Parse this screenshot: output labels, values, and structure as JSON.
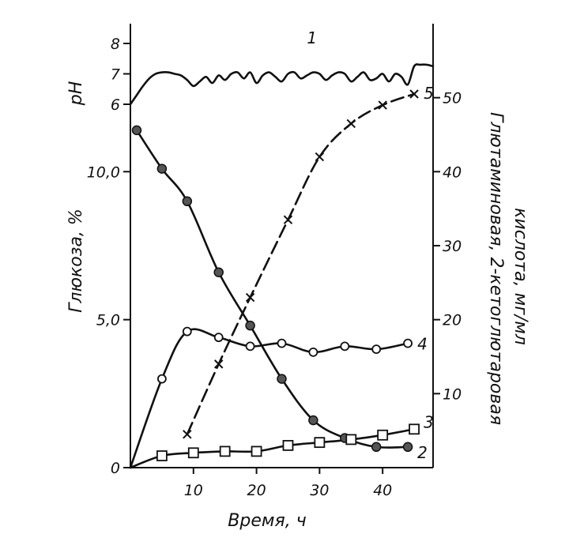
{
  "chart_data": {
    "type": "line",
    "xlabel": "Время, ч",
    "x_ticks": [
      "10",
      "20",
      "30",
      "40"
    ],
    "xlim": [
      0,
      48
    ],
    "left_axis": {
      "label": "Глюкоза, %",
      "ylim": [
        0,
        15
      ],
      "tick_values": [
        0,
        5,
        10
      ],
      "tick_labels": [
        "0",
        "5,0",
        "10,0"
      ]
    },
    "ph_axis": {
      "label": "pH",
      "ylim": [
        5,
        9
      ],
      "tick_values": [
        6,
        7,
        8
      ],
      "tick_labels": [
        "6",
        "7",
        "8"
      ]
    },
    "right_axis": {
      "label_line1": "Глютаминовая, 2-кетоглютаровая",
      "label_line2": "кислота, мг/мл",
      "ylim": [
        0,
        60
      ],
      "tick_values": [
        10,
        20,
        30,
        40,
        50
      ],
      "tick_labels": [
        "10",
        "20",
        "30",
        "40",
        "50"
      ]
    },
    "series": [
      {
        "name": "1",
        "axis": "ph",
        "marker": "none",
        "x": [
          0,
          1,
          2,
          3,
          4,
          5,
          6,
          7,
          8,
          9,
          10,
          11,
          12,
          13,
          14,
          15,
          16,
          17,
          18,
          19,
          20,
          21,
          22,
          23,
          24,
          25,
          26,
          27,
          28,
          29,
          30,
          31,
          32,
          33,
          34,
          35,
          36,
          37,
          38,
          39,
          40,
          41,
          42,
          43,
          44,
          45,
          46,
          47,
          48
        ],
        "values": [
          6.0,
          6.3,
          6.6,
          6.85,
          7.0,
          7.05,
          7.05,
          7.0,
          6.95,
          6.8,
          6.6,
          6.75,
          6.9,
          6.7,
          6.95,
          6.8,
          7.0,
          7.05,
          6.85,
          7.05,
          6.7,
          6.95,
          7.05,
          6.9,
          6.75,
          7.0,
          7.05,
          6.85,
          6.95,
          7.05,
          7.0,
          6.8,
          6.95,
          7.05,
          7.0,
          6.75,
          6.9,
          7.05,
          6.8,
          6.85,
          7.0,
          6.75,
          7.0,
          6.9,
          6.65,
          7.25,
          7.3,
          7.3,
          7.25
        ]
      },
      {
        "name": "2",
        "axis": "left",
        "marker": "filled-circle",
        "x": [
          1,
          5,
          9,
          14,
          19,
          24,
          29,
          34,
          39,
          44
        ],
        "values": [
          11.4,
          10.1,
          9.0,
          6.6,
          4.8,
          3.0,
          1.6,
          1.0,
          0.7,
          0.7
        ]
      },
      {
        "name": "3",
        "axis": "left",
        "marker": "square",
        "x": [
          0,
          5,
          10,
          15,
          20,
          25,
          30,
          35,
          40,
          45
        ],
        "values": [
          0.0,
          0.4,
          0.5,
          0.55,
          0.55,
          0.75,
          0.85,
          0.95,
          1.1,
          1.3
        ]
      },
      {
        "name": "4",
        "axis": "left",
        "marker": "open-circle",
        "x": [
          0,
          5,
          9,
          14,
          19,
          24,
          29,
          34,
          39,
          44
        ],
        "values": [
          0.0,
          3.0,
          4.6,
          4.4,
          4.1,
          4.2,
          3.9,
          4.1,
          4.0,
          4.2
        ]
      },
      {
        "name": "5",
        "axis": "right",
        "marker": "cross",
        "dashed": true,
        "x": [
          9,
          14,
          19,
          25,
          30,
          35,
          40,
          45
        ],
        "values": [
          4.5,
          14.0,
          23.0,
          33.5,
          42.0,
          46.5,
          49.0,
          50.5
        ]
      }
    ]
  }
}
